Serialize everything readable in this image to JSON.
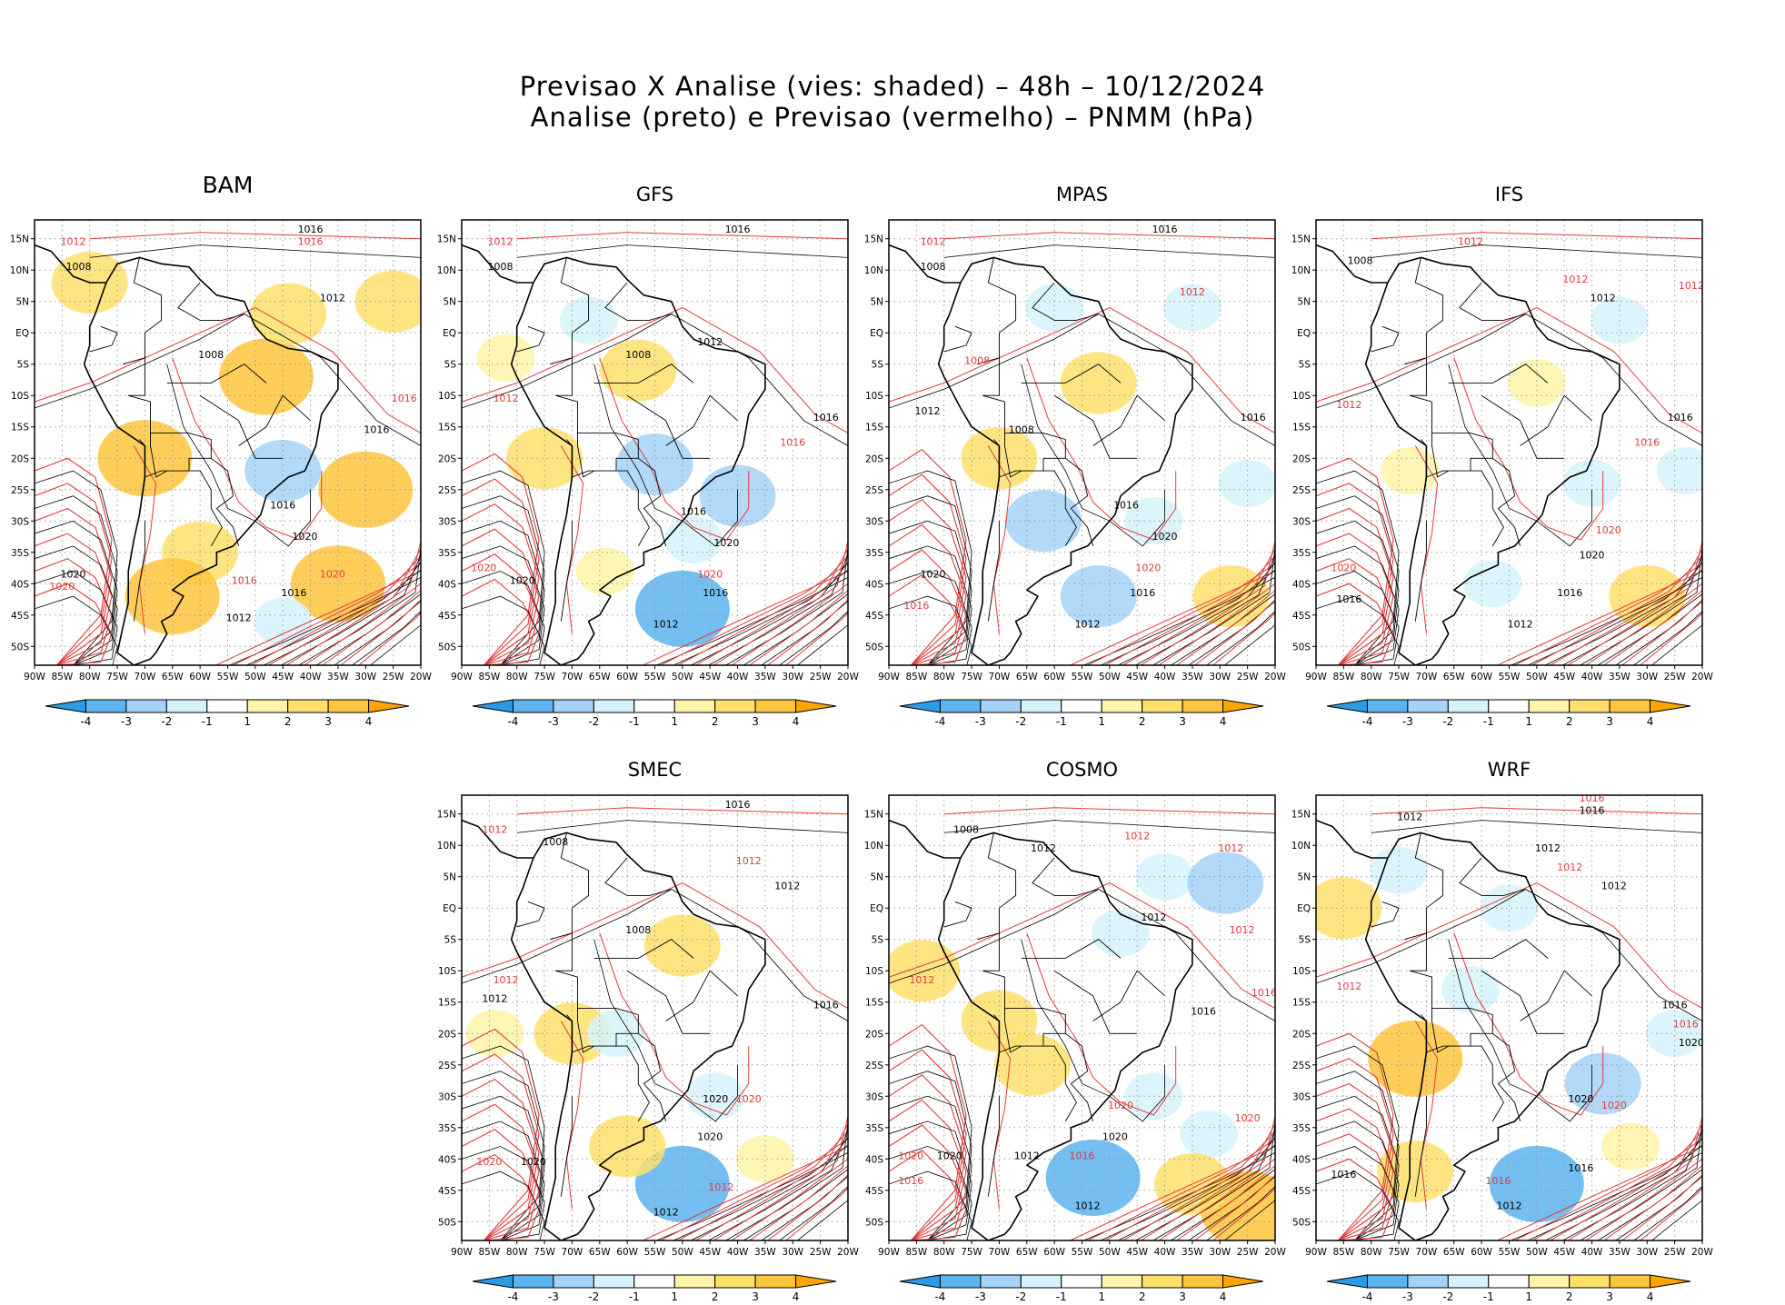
{
  "title_line1": "Previsao X Analise (vies: shaded) – 48h – 10/12/2024",
  "title_line2": "Analise (preto) e Previsao (vermelho) – PNMM (hPa)",
  "lat_ticks": [
    "15N",
    "10N",
    "5N",
    "EQ",
    "5S",
    "10S",
    "15S",
    "20S",
    "25S",
    "30S",
    "35S",
    "40S",
    "45S",
    "50S"
  ],
  "lon_ticks": [
    "90W",
    "85W",
    "80W",
    "75W",
    "70W",
    "65W",
    "60W",
    "55W",
    "50W",
    "45W",
    "40W",
    "35W",
    "30W",
    "25W",
    "20W"
  ],
  "colorbar": {
    "labels": [
      "-4",
      "-3",
      "-2",
      "-1",
      "1",
      "2",
      "3",
      "4"
    ],
    "colors": [
      "#2c9be6",
      "#5cb3f0",
      "#a5d2f7",
      "#d6f3fb",
      "#ffffff",
      "#fff5a8",
      "#ffe06b",
      "#ffc53d",
      "#ffa500"
    ]
  },
  "colors": {
    "analysis": "#000000",
    "forecast": "#e23a3a",
    "grid": "#9a9a9a"
  },
  "panels": [
    {
      "name": "BAM",
      "bias": [
        {
          "lon": -48,
          "lat": -7,
          "v": 3
        },
        {
          "lon": -44,
          "lat": 3,
          "v": 2
        },
        {
          "lon": -30,
          "lat": -25,
          "v": 3
        },
        {
          "lon": -35,
          "lat": -40,
          "v": 3
        },
        {
          "lon": -60,
          "lat": -35,
          "v": 2
        },
        {
          "lon": -70,
          "lat": -20,
          "v": 3
        },
        {
          "lon": -65,
          "lat": -42,
          "v": 3
        },
        {
          "lon": -80,
          "lat": 8,
          "v": 2
        },
        {
          "lon": -25,
          "lat": 5,
          "v": 2
        },
        {
          "lon": -45,
          "lat": -22,
          "v": -2
        },
        {
          "lon": -45,
          "lat": -46,
          "v": -1
        }
      ],
      "labels": [
        {
          "t": "1016",
          "c": "a",
          "lon": -40,
          "lat": 16
        },
        {
          "t": "1016",
          "c": "f",
          "lon": -40,
          "lat": 14
        },
        {
          "t": "1012",
          "c": "f",
          "lon": -83,
          "lat": 14
        },
        {
          "t": "1008",
          "c": "a",
          "lon": -82,
          "lat": 10
        },
        {
          "t": "1012",
          "c": "a",
          "lon": -36,
          "lat": 5
        },
        {
          "t": "1016",
          "c": "f",
          "lon": -23,
          "lat": -11
        },
        {
          "t": "1016",
          "c": "a",
          "lon": -28,
          "lat": -16
        },
        {
          "t": "1016",
          "c": "a",
          "lon": -45,
          "lat": -28
        },
        {
          "t": "1020",
          "c": "a",
          "lon": -41,
          "lat": -33
        },
        {
          "t": "1020",
          "c": "f",
          "lon": -36,
          "lat": -39
        },
        {
          "t": "1016",
          "c": "f",
          "lon": -52,
          "lat": -40
        },
        {
          "t": "1016",
          "c": "a",
          "lon": -43,
          "lat": -42
        },
        {
          "t": "1012",
          "c": "a",
          "lon": -53,
          "lat": -46
        },
        {
          "t": "1020",
          "c": "a",
          "lon": -83,
          "lat": -39
        },
        {
          "t": "1020",
          "c": "f",
          "lon": -85,
          "lat": -41
        },
        {
          "t": "1008",
          "c": "a",
          "lon": -58,
          "lat": -4
        }
      ]
    },
    {
      "name": "GFS",
      "bias": [
        {
          "lon": -67,
          "lat": 2,
          "v": -1
        },
        {
          "lon": -48,
          "lat": -33,
          "v": -1
        },
        {
          "lon": -50,
          "lat": -44,
          "v": -3
        },
        {
          "lon": -75,
          "lat": -20,
          "v": 2
        },
        {
          "lon": -82,
          "lat": -4,
          "v": 1
        },
        {
          "lon": -40,
          "lat": -26,
          "v": -2
        },
        {
          "lon": -55,
          "lat": -21,
          "v": -2
        },
        {
          "lon": -64,
          "lat": -38,
          "v": 1
        },
        {
          "lon": -58,
          "lat": -6,
          "v": 2
        }
      ],
      "labels": [
        {
          "t": "1016",
          "c": "a",
          "lon": -40,
          "lat": 16
        },
        {
          "t": "1012",
          "c": "f",
          "lon": -83,
          "lat": 14
        },
        {
          "t": "1008",
          "c": "a",
          "lon": -83,
          "lat": 10
        },
        {
          "t": "1012",
          "c": "a",
          "lon": -45,
          "lat": -2
        },
        {
          "t": "1016",
          "c": "a",
          "lon": -24,
          "lat": -14
        },
        {
          "t": "1016",
          "c": "f",
          "lon": -30,
          "lat": -18
        },
        {
          "t": "1016",
          "c": "a",
          "lon": -48,
          "lat": -29
        },
        {
          "t": "1020",
          "c": "a",
          "lon": -42,
          "lat": -34
        },
        {
          "t": "1020",
          "c": "f",
          "lon": -45,
          "lat": -39
        },
        {
          "t": "1016",
          "c": "a",
          "lon": -44,
          "lat": -42
        },
        {
          "t": "1012",
          "c": "a",
          "lon": -53,
          "lat": -47
        },
        {
          "t": "1020",
          "c": "f",
          "lon": -86,
          "lat": -38
        },
        {
          "t": "1020",
          "c": "a",
          "lon": -79,
          "lat": -40
        },
        {
          "t": "1012",
          "c": "f",
          "lon": -82,
          "lat": -11
        },
        {
          "t": "1008",
          "c": "a",
          "lon": -58,
          "lat": -4
        }
      ]
    },
    {
      "name": "MPAS",
      "bias": [
        {
          "lon": -62,
          "lat": -30,
          "v": -2
        },
        {
          "lon": -52,
          "lat": -42,
          "v": -2
        },
        {
          "lon": -42,
          "lat": -30,
          "v": -1
        },
        {
          "lon": -35,
          "lat": 4,
          "v": -1
        },
        {
          "lon": -60,
          "lat": 4,
          "v": -1
        },
        {
          "lon": -28,
          "lat": -42,
          "v": 2
        },
        {
          "lon": -52,
          "lat": -8,
          "v": 2
        },
        {
          "lon": -70,
          "lat": -20,
          "v": 2
        },
        {
          "lon": -25,
          "lat": -24,
          "v": -1
        }
      ],
      "labels": [
        {
          "t": "1016",
          "c": "a",
          "lon": -40,
          "lat": 16
        },
        {
          "t": "1012",
          "c": "f",
          "lon": -82,
          "lat": 14
        },
        {
          "t": "1008",
          "c": "a",
          "lon": -82,
          "lat": 10
        },
        {
          "t": "1012",
          "c": "f",
          "lon": -35,
          "lat": 6
        },
        {
          "t": "1008",
          "c": "f",
          "lon": -74,
          "lat": -5
        },
        {
          "t": "1016",
          "c": "a",
          "lon": -24,
          "lat": -14
        },
        {
          "t": "1016",
          "c": "a",
          "lon": -47,
          "lat": -28
        },
        {
          "t": "1020",
          "c": "a",
          "lon": -40,
          "lat": -33
        },
        {
          "t": "1020",
          "c": "f",
          "lon": -43,
          "lat": -38
        },
        {
          "t": "1016",
          "c": "a",
          "lon": -44,
          "lat": -42
        },
        {
          "t": "1012",
          "c": "a",
          "lon": -54,
          "lat": -47
        },
        {
          "t": "1020",
          "c": "a",
          "lon": -82,
          "lat": -39
        },
        {
          "t": "1016",
          "c": "f",
          "lon": -85,
          "lat": -44
        },
        {
          "t": "1012",
          "c": "a",
          "lon": -83,
          "lat": -13
        },
        {
          "t": "1008",
          "c": "a",
          "lon": -66,
          "lat": -16
        }
      ]
    },
    {
      "name": "IFS",
      "bias": [
        {
          "lon": -35,
          "lat": 2,
          "v": -1
        },
        {
          "lon": -23,
          "lat": -22,
          "v": -1
        },
        {
          "lon": -40,
          "lat": -24,
          "v": -1
        },
        {
          "lon": -30,
          "lat": -42,
          "v": 2
        },
        {
          "lon": -50,
          "lat": -8,
          "v": 1
        },
        {
          "lon": -73,
          "lat": -22,
          "v": 1
        },
        {
          "lon": -58,
          "lat": -40,
          "v": -1
        }
      ],
      "labels": [
        {
          "t": "1012",
          "c": "f",
          "lon": -62,
          "lat": 14
        },
        {
          "t": "1008",
          "c": "a",
          "lon": -82,
          "lat": 11
        },
        {
          "t": "1012",
          "c": "f",
          "lon": -43,
          "lat": 8
        },
        {
          "t": "1012",
          "c": "f",
          "lon": -22,
          "lat": 7
        },
        {
          "t": "1012",
          "c": "a",
          "lon": -38,
          "lat": 5
        },
        {
          "t": "1016",
          "c": "a",
          "lon": -24,
          "lat": -14
        },
        {
          "t": "1016",
          "c": "f",
          "lon": -30,
          "lat": -18
        },
        {
          "t": "1020",
          "c": "f",
          "lon": -37,
          "lat": -32
        },
        {
          "t": "1020",
          "c": "a",
          "lon": -40,
          "lat": -36
        },
        {
          "t": "1016",
          "c": "a",
          "lon": -44,
          "lat": -42
        },
        {
          "t": "1012",
          "c": "a",
          "lon": -53,
          "lat": -47
        },
        {
          "t": "1020",
          "c": "f",
          "lon": -85,
          "lat": -38
        },
        {
          "t": "1016",
          "c": "a",
          "lon": -84,
          "lat": -43
        },
        {
          "t": "1012",
          "c": "f",
          "lon": -84,
          "lat": -12
        }
      ]
    },
    {
      "name": "SMEC",
      "bias": [
        {
          "lon": -50,
          "lat": -6,
          "v": 2
        },
        {
          "lon": -50,
          "lat": -44,
          "v": -3
        },
        {
          "lon": -44,
          "lat": -30,
          "v": -1
        },
        {
          "lon": -70,
          "lat": -20,
          "v": 2
        },
        {
          "lon": -84,
          "lat": -20,
          "v": 1
        },
        {
          "lon": -35,
          "lat": -40,
          "v": 1
        },
        {
          "lon": -62,
          "lat": -20,
          "v": -1
        },
        {
          "lon": -60,
          "lat": -38,
          "v": 2
        }
      ],
      "labels": [
        {
          "t": "1016",
          "c": "a",
          "lon": -40,
          "lat": 16
        },
        {
          "t": "1012",
          "c": "f",
          "lon": -84,
          "lat": 12
        },
        {
          "t": "1008",
          "c": "a",
          "lon": -73,
          "lat": 10
        },
        {
          "t": "1012",
          "c": "f",
          "lon": -38,
          "lat": 7
        },
        {
          "t": "1012",
          "c": "a",
          "lon": -31,
          "lat": 3
        },
        {
          "t": "1016",
          "c": "a",
          "lon": -24,
          "lat": -16
        },
        {
          "t": "1020",
          "c": "a",
          "lon": -44,
          "lat": -31
        },
        {
          "t": "1020",
          "c": "f",
          "lon": -38,
          "lat": -31
        },
        {
          "t": "1020",
          "c": "a",
          "lon": -45,
          "lat": -37
        },
        {
          "t": "1012",
          "c": "f",
          "lon": -43,
          "lat": -45
        },
        {
          "t": "1012",
          "c": "a",
          "lon": -53,
          "lat": -49
        },
        {
          "t": "1020",
          "c": "f",
          "lon": -85,
          "lat": -41
        },
        {
          "t": "1020",
          "c": "a",
          "lon": -77,
          "lat": -41
        },
        {
          "t": "1012",
          "c": "f",
          "lon": -82,
          "lat": -12
        },
        {
          "t": "1012",
          "c": "a",
          "lon": -84,
          "lat": -15
        },
        {
          "t": "1008",
          "c": "a",
          "lon": -58,
          "lat": -4
        }
      ]
    },
    {
      "name": "COSMO",
      "bias": [
        {
          "lon": -40,
          "lat": 5,
          "v": -1
        },
        {
          "lon": -29,
          "lat": 4,
          "v": -2
        },
        {
          "lon": -48,
          "lat": -4,
          "v": -1
        },
        {
          "lon": -84,
          "lat": -10,
          "v": 2
        },
        {
          "lon": -53,
          "lat": -43,
          "v": -3
        },
        {
          "lon": -32,
          "lat": -36,
          "v": -1
        },
        {
          "lon": -42,
          "lat": -30,
          "v": -1
        },
        {
          "lon": -25,
          "lat": -48,
          "v": 3
        },
        {
          "lon": -35,
          "lat": -44,
          "v": 2
        },
        {
          "lon": -64,
          "lat": -25,
          "v": 2
        },
        {
          "lon": -70,
          "lat": -18,
          "v": 2
        }
      ],
      "labels": [
        {
          "t": "1008",
          "c": "a",
          "lon": -76,
          "lat": 12
        },
        {
          "t": "1012",
          "c": "f",
          "lon": -45,
          "lat": 11
        },
        {
          "t": "1012",
          "c": "a",
          "lon": -62,
          "lat": 9
        },
        {
          "t": "1012",
          "c": "f",
          "lon": -28,
          "lat": 9
        },
        {
          "t": "1012",
          "c": "a",
          "lon": -42,
          "lat": -2
        },
        {
          "t": "1012",
          "c": "f",
          "lon": -26,
          "lat": -4
        },
        {
          "t": "1016",
          "c": "f",
          "lon": -22,
          "lat": -14
        },
        {
          "t": "1016",
          "c": "a",
          "lon": -33,
          "lat": -17
        },
        {
          "t": "1020",
          "c": "f",
          "lon": -48,
          "lat": -32
        },
        {
          "t": "1020",
          "c": "f",
          "lon": -25,
          "lat": -34
        },
        {
          "t": "1020",
          "c": "a",
          "lon": -49,
          "lat": -37
        },
        {
          "t": "1016",
          "c": "f",
          "lon": -55,
          "lat": -40
        },
        {
          "t": "1012",
          "c": "a",
          "lon": -65,
          "lat": -40
        },
        {
          "t": "1012",
          "c": "a",
          "lon": -54,
          "lat": -48
        },
        {
          "t": "1020",
          "c": "f",
          "lon": -86,
          "lat": -40
        },
        {
          "t": "1020",
          "c": "a",
          "lon": -79,
          "lat": -40
        },
        {
          "t": "1016",
          "c": "f",
          "lon": -86,
          "lat": -44
        },
        {
          "t": "1012",
          "c": "f",
          "lon": -84,
          "lat": -12
        }
      ]
    },
    {
      "name": "WRF",
      "bias": [
        {
          "lon": -55,
          "lat": 0,
          "v": -1
        },
        {
          "lon": -38,
          "lat": -28,
          "v": -2
        },
        {
          "lon": -50,
          "lat": -44,
          "v": -3
        },
        {
          "lon": -72,
          "lat": -24,
          "v": 3
        },
        {
          "lon": -85,
          "lat": 0,
          "v": 2
        },
        {
          "lon": -72,
          "lat": -42,
          "v": 2
        },
        {
          "lon": -33,
          "lat": -38,
          "v": 1
        },
        {
          "lon": -75,
          "lat": 6,
          "v": -1
        },
        {
          "lon": -25,
          "lat": -20,
          "v": -1
        },
        {
          "lon": -62,
          "lat": -13,
          "v": -1
        }
      ],
      "labels": [
        {
          "t": "1016",
          "c": "f",
          "lon": -40,
          "lat": 17
        },
        {
          "t": "1016",
          "c": "a",
          "lon": -40,
          "lat": 15
        },
        {
          "t": "1012",
          "c": "a",
          "lon": -73,
          "lat": 14
        },
        {
          "t": "1012",
          "c": "a",
          "lon": -48,
          "lat": 9
        },
        {
          "t": "1012",
          "c": "f",
          "lon": -44,
          "lat": 6
        },
        {
          "t": "1012",
          "c": "a",
          "lon": -36,
          "lat": 3
        },
        {
          "t": "1016",
          "c": "a",
          "lon": -25,
          "lat": -16
        },
        {
          "t": "1016",
          "c": "f",
          "lon": -23,
          "lat": -19
        },
        {
          "t": "1020",
          "c": "a",
          "lon": -22,
          "lat": -22
        },
        {
          "t": "1020",
          "c": "a",
          "lon": -42,
          "lat": -31
        },
        {
          "t": "1020",
          "c": "f",
          "lon": -36,
          "lat": -32
        },
        {
          "t": "1016",
          "c": "a",
          "lon": -42,
          "lat": -42
        },
        {
          "t": "1012",
          "c": "a",
          "lon": -55,
          "lat": -48
        },
        {
          "t": "1016",
          "c": "f",
          "lon": -57,
          "lat": -44
        },
        {
          "t": "1016",
          "c": "a",
          "lon": -85,
          "lat": -43
        },
        {
          "t": "1012",
          "c": "f",
          "lon": -84,
          "lat": -13
        }
      ]
    }
  ]
}
